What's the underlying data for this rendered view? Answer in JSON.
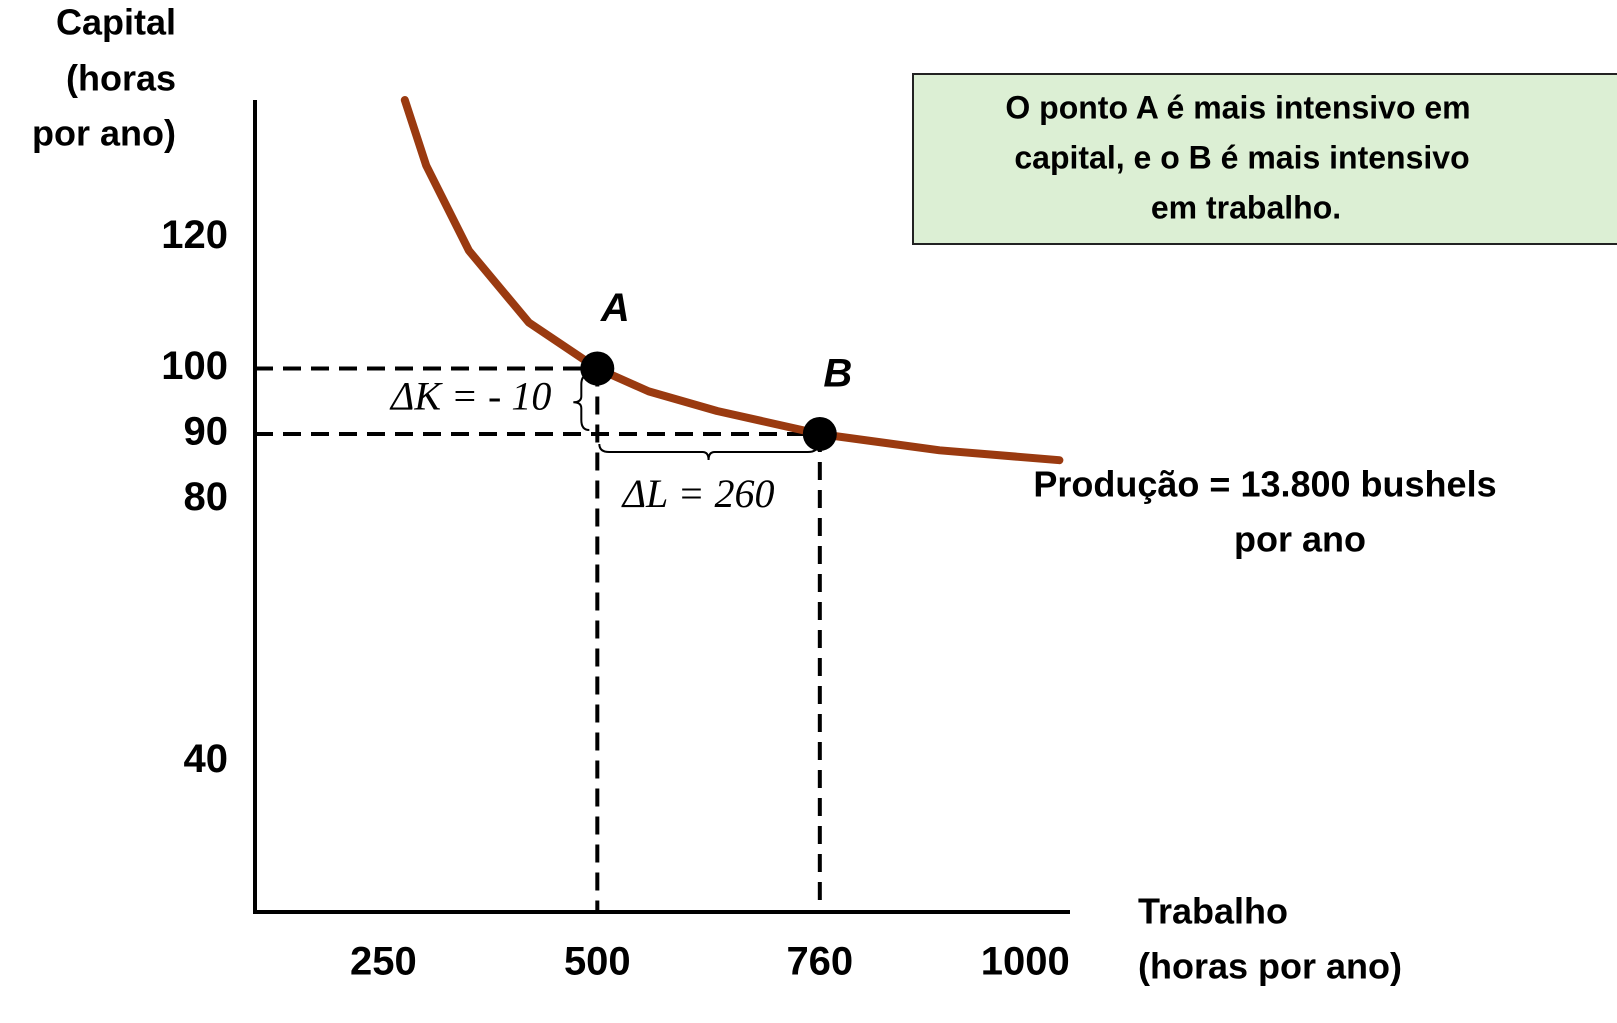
{
  "chart_data": {
    "type": "line",
    "y_label": [
      "Capital",
      "(horas",
      "por ano)"
    ],
    "x_label": [
      "Trabalho",
      "(horas por ano)"
    ],
    "xlim": [
      100,
      1050
    ],
    "ylim": [
      17,
      141
    ],
    "xticks": [
      250,
      500,
      760,
      1000
    ],
    "yticks": [
      120,
      100,
      90,
      80,
      40
    ],
    "curve": {
      "color": "#9a3a10",
      "x": [
        275,
        300,
        350,
        420,
        500,
        560,
        640,
        760,
        900,
        1040
      ],
      "y": [
        141,
        131,
        118,
        107,
        100,
        96.5,
        93.5,
        90,
        87.5,
        86
      ]
    },
    "points": [
      {
        "name": "A",
        "x": 500,
        "y": 100
      },
      {
        "name": "B",
        "x": 760,
        "y": 90
      }
    ],
    "delta_k": "ΔK = - 10",
    "delta_l": "ΔL = 260",
    "note": [
      "O ponto A é mais intensivo em",
      "capital, e o B é mais intensivo",
      "em trabalho."
    ],
    "curve_label": [
      "Produção = 13.800 bushels",
      "por ano"
    ]
  }
}
